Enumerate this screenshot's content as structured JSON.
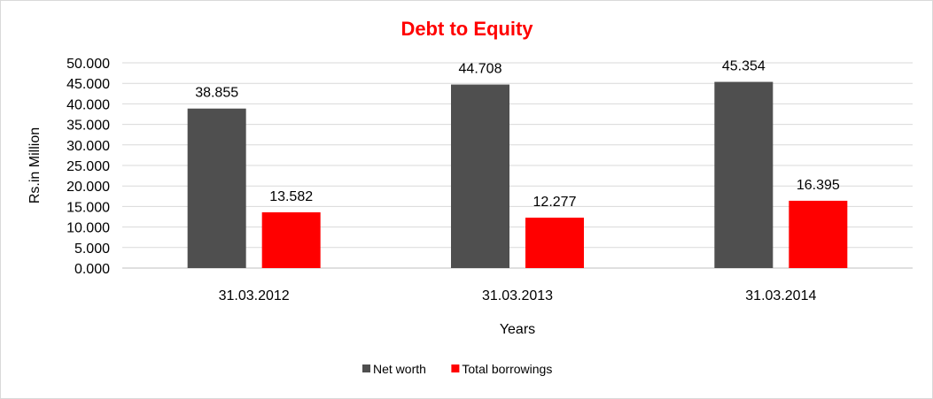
{
  "chart_data": {
    "type": "bar",
    "title": "Debt to Equity",
    "xlabel": "Years",
    "ylabel": "Rs.in Million",
    "categories": [
      "31.03.2012",
      "31.03.2013",
      "31.03.2014"
    ],
    "series": [
      {
        "name": "Net worth",
        "values": [
          38.855,
          44.708,
          45.354
        ],
        "labels": [
          "38.855",
          "44.708",
          "45.354"
        ],
        "color": "#4f4f4f"
      },
      {
        "name": "Total borrowings",
        "values": [
          13.582,
          12.277,
          16.395
        ],
        "labels": [
          "13.582",
          "12.277",
          "16.395"
        ],
        "color": "#ff0000"
      }
    ],
    "ylim": [
      0,
      50
    ],
    "yticks": [
      "0.000",
      "5.000",
      "10.000",
      "15.000",
      "20.000",
      "25.000",
      "30.000",
      "35.000",
      "40.000",
      "45.000",
      "50.000"
    ],
    "grid": true,
    "legend_position": "bottom",
    "title_color": "#ff0000"
  }
}
